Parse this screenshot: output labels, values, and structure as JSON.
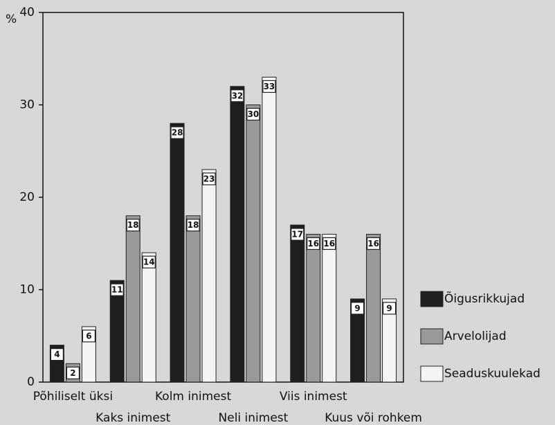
{
  "chart_data": {
    "type": "bar",
    "y_label": "%",
    "categories": [
      "Põhiliselt üksi",
      "Kaks inimest",
      "Kolm inimest",
      "Neli inimest",
      "Viis inimest",
      "Kuus või rohkem"
    ],
    "series": [
      {
        "name": "Õigusrikkujad",
        "color": "#1e1e1e",
        "values": [
          4,
          11,
          28,
          32,
          17,
          9
        ]
      },
      {
        "name": "Arvelolijad",
        "color": "#9a9a9a",
        "values": [
          2,
          18,
          18,
          30,
          16,
          16
        ]
      },
      {
        "name": "Seaduskuulekad",
        "color": "#f4f4f4",
        "values": [
          6,
          14,
          23,
          33,
          16,
          9
        ]
      }
    ],
    "ylim": [
      0,
      40
    ],
    "yticks": [
      0,
      10,
      20,
      30,
      40
    ],
    "legend": "right"
  }
}
